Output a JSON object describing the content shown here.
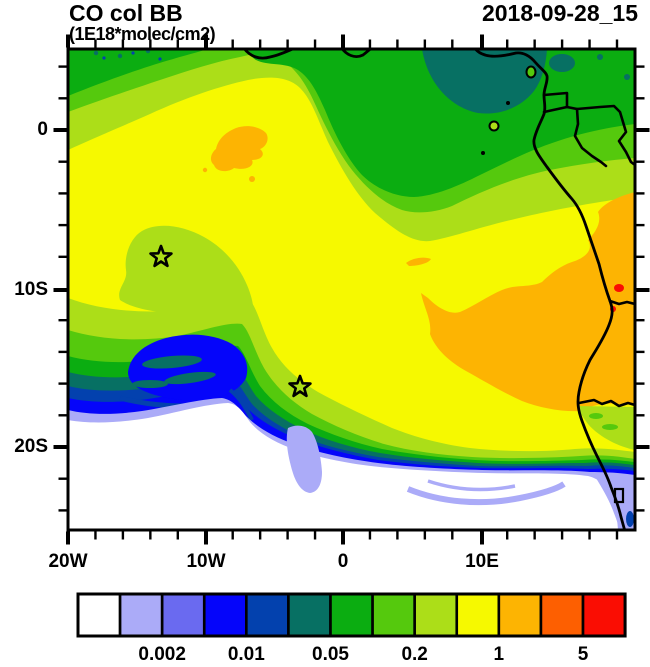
{
  "header": {
    "title": "CO col BB",
    "subtitle": "(1E18*molec/cm2)",
    "datetime": "2018-09-28_15"
  },
  "palette": {
    "white": "#FFFFFF",
    "lavender": "#ABABF8",
    "violet": "#6A6AF0",
    "blue": "#0505FA",
    "navy": "#0341AE",
    "teal": "#077063",
    "green": "#0BAD11",
    "midgreen": "#55C90D",
    "yellowgreen": "#ACDE18",
    "yellow": "#F6F900",
    "orange": "#FDB402",
    "orangered": "#FD5F01",
    "red": "#FA0D03",
    "ink": "#000000"
  },
  "axes": {
    "x_labels": [
      "20W",
      "10W",
      "0",
      "10E"
    ],
    "y_labels": [
      "0",
      "10S",
      "20S"
    ]
  },
  "colorbar": {
    "order": [
      "white",
      "lavender",
      "violet",
      "blue",
      "navy",
      "teal",
      "green",
      "midgreen",
      "yellowgreen",
      "yellow",
      "orange",
      "orangered",
      "red"
    ],
    "labels": [
      "0.002",
      "0.01",
      "0.05",
      "0.2",
      "1",
      "5"
    ]
  },
  "chart_data": {
    "type": "heatmap",
    "title": "CO col BB",
    "units": "1E18*molec/cm2",
    "timestamp": "2018-09-28_15",
    "x_axis": {
      "tick_labels": [
        "20W",
        "10W",
        "0",
        "10E"
      ],
      "approx_range_lon_deg": [
        -20,
        21
      ],
      "minor_tick_interval_deg": 2
    },
    "y_axis": {
      "tick_labels": [
        "0",
        "10S",
        "20S"
      ],
      "approx_range_lat_deg": [
        5,
        -25
      ],
      "minor_tick_interval_deg": 2
    },
    "contour_levels": [
      0.001,
      0.002,
      0.005,
      0.01,
      0.02,
      0.05,
      0.1,
      0.2,
      0.5,
      1,
      2,
      5
    ],
    "labeled_levels": [
      "0.002",
      "0.01",
      "0.05",
      "0.2",
      "1",
      "5"
    ],
    "legend_position": "bottom",
    "grid": false,
    "described_features": {
      "dominant_field": "0.5-1 (yellow) over most of the gulf and coastal land",
      "high_plume_1_2": "large orange region inland Angola/Congo east of ~4E between ~4S and ~17S, plus small patch near 13W 1S and sliver near 2E 9S",
      "very_high_2_5": "small red-orange spots near right edge around 20E, 10-11S",
      "low_clean_air": "white region (<0.001) over southwest ocean south of a sharp gradient front arcing from ~20W 17S to ~14E 22S",
      "gradient_front": "tightly packed contours 0.001-0.2 with embedded blue/teal eddy near 14W 15S",
      "markers": [
        {
          "type": "star",
          "approx_position": "13W, 8S"
        },
        {
          "type": "star",
          "approx_position": "3W, 16S"
        },
        {
          "type": "open-rectangle",
          "approx_position": "coast near 20E, 23S"
        }
      ]
    }
  }
}
